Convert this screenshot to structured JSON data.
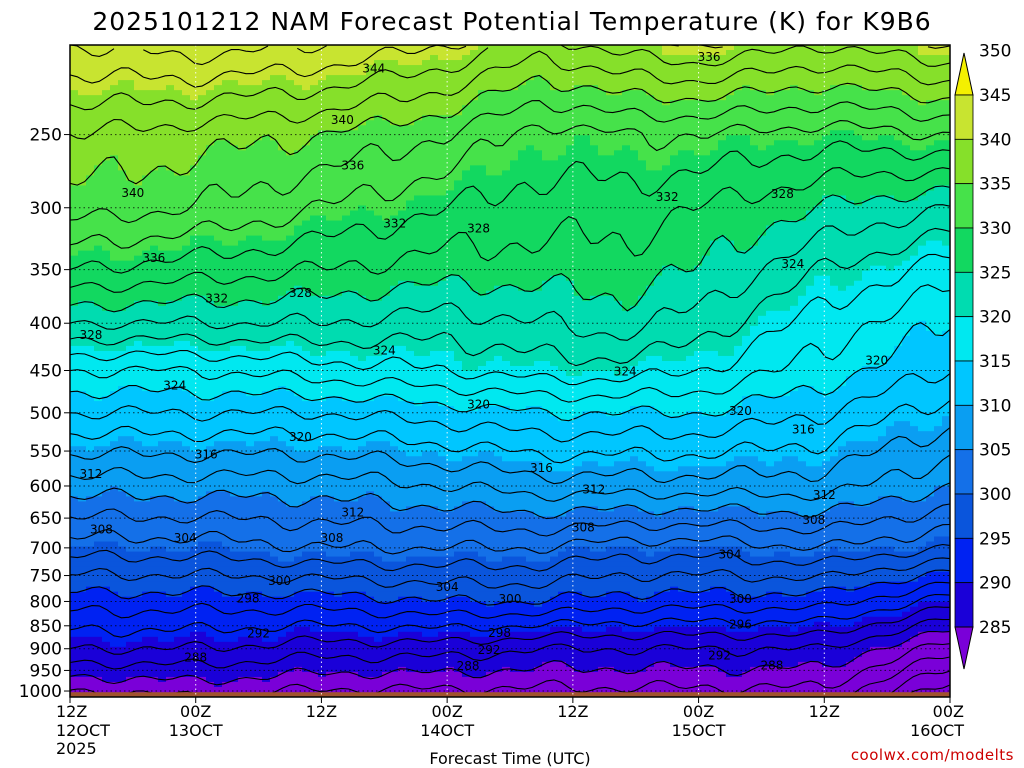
{
  "chart_data": {
    "type": "contour",
    "title": "2025101212 NAM Forecast Potential Temperature (K) for K9B6",
    "xlabel": "Forecast Time (UTC)",
    "ylabel": "",
    "y_axis": {
      "scale": "log-pressure",
      "range": [
        1015,
        200
      ],
      "ticks": [
        250,
        300,
        350,
        400,
        450,
        500,
        550,
        600,
        650,
        700,
        750,
        800,
        850,
        900,
        950,
        1000
      ]
    },
    "x_axis": {
      "range_hours": [
        0,
        84
      ],
      "ticks": [
        {
          "hour": 0,
          "line1": "12Z",
          "line2": "12OCT",
          "line3": "2025"
        },
        {
          "hour": 12,
          "line1": "00Z",
          "line2": "13OCT",
          "line3": ""
        },
        {
          "hour": 24,
          "line1": "12Z",
          "line2": "",
          "line3": ""
        },
        {
          "hour": 36,
          "line1": "00Z",
          "line2": "14OCT",
          "line3": ""
        },
        {
          "hour": 48,
          "line1": "12Z",
          "line2": "",
          "line3": ""
        },
        {
          "hour": 60,
          "line1": "00Z",
          "line2": "15OCT",
          "line3": ""
        },
        {
          "hour": 72,
          "line1": "12Z",
          "line2": "",
          "line3": ""
        },
        {
          "hour": 84,
          "line1": "00Z",
          "line2": "16OCT",
          "line3": ""
        }
      ]
    },
    "colorbar": {
      "levels": [
        285,
        290,
        295,
        300,
        305,
        310,
        315,
        320,
        325,
        330,
        335,
        340,
        345,
        350
      ],
      "colors": [
        "#7a00d8",
        "#1a00d8",
        "#0022f2",
        "#0a55dc",
        "#1470e8",
        "#0a9ef2",
        "#00c6ff",
        "#00e8f0",
        "#00dcb0",
        "#12d860",
        "#46e24a",
        "#86e02a",
        "#c8e430",
        "#f4f000"
      ]
    },
    "grid": true,
    "contour_interval": 2,
    "profiles": [
      {
        "hour": 0,
        "theta": [
          [
            1015,
            287
          ],
          [
            900,
            294
          ],
          [
            800,
            299
          ],
          [
            700,
            305
          ],
          [
            600,
            311
          ],
          [
            500,
            318
          ],
          [
            450,
            322
          ],
          [
            400,
            328
          ],
          [
            350,
            334
          ],
          [
            300,
            339
          ],
          [
            250,
            342
          ],
          [
            200,
            348
          ]
        ]
      },
      {
        "hour": 12,
        "theta": [
          [
            1015,
            288
          ],
          [
            900,
            294
          ],
          [
            800,
            299
          ],
          [
            700,
            305
          ],
          [
            600,
            311
          ],
          [
            500,
            318
          ],
          [
            450,
            322
          ],
          [
            400,
            328
          ],
          [
            350,
            333
          ],
          [
            300,
            338
          ],
          [
            250,
            341
          ],
          [
            200,
            349
          ]
        ]
      },
      {
        "hour": 24,
        "theta": [
          [
            1015,
            287
          ],
          [
            900,
            293
          ],
          [
            800,
            299
          ],
          [
            700,
            306
          ],
          [
            600,
            311
          ],
          [
            500,
            318
          ],
          [
            450,
            323
          ],
          [
            400,
            328
          ],
          [
            350,
            332
          ],
          [
            300,
            336
          ],
          [
            250,
            340
          ],
          [
            200,
            348
          ]
        ]
      },
      {
        "hour": 36,
        "theta": [
          [
            1015,
            287
          ],
          [
            900,
            293
          ],
          [
            800,
            300
          ],
          [
            700,
            306
          ],
          [
            600,
            312
          ],
          [
            500,
            319
          ],
          [
            450,
            324
          ],
          [
            400,
            327
          ],
          [
            350,
            331
          ],
          [
            300,
            334
          ],
          [
            250,
            338
          ],
          [
            200,
            346
          ]
        ]
      },
      {
        "hour": 45,
        "theta": [
          [
            1015,
            287
          ],
          [
            900,
            292
          ],
          [
            800,
            300
          ],
          [
            700,
            306
          ],
          [
            600,
            313
          ],
          [
            500,
            320
          ],
          [
            450,
            325
          ],
          [
            400,
            328
          ],
          [
            350,
            331
          ],
          [
            300,
            333
          ],
          [
            250,
            335
          ],
          [
            200,
            343
          ]
        ]
      },
      {
        "hour": 53,
        "theta": [
          [
            1015,
            287
          ],
          [
            900,
            292
          ],
          [
            800,
            299
          ],
          [
            700,
            305
          ],
          [
            600,
            313
          ],
          [
            500,
            320
          ],
          [
            450,
            325
          ],
          [
            400,
            329
          ],
          [
            350,
            331
          ],
          [
            300,
            333
          ],
          [
            250,
            336
          ],
          [
            200,
            345
          ]
        ]
      },
      {
        "hour": 60,
        "theta": [
          [
            1015,
            287
          ],
          [
            900,
            292
          ],
          [
            800,
            299
          ],
          [
            700,
            305
          ],
          [
            600,
            313
          ],
          [
            500,
            320
          ],
          [
            450,
            324
          ],
          [
            400,
            327
          ],
          [
            350,
            330
          ],
          [
            300,
            332
          ],
          [
            250,
            336
          ],
          [
            200,
            346
          ]
        ]
      },
      {
        "hour": 72,
        "theta": [
          [
            1015,
            287
          ],
          [
            900,
            292
          ],
          [
            800,
            299
          ],
          [
            700,
            306
          ],
          [
            600,
            313
          ],
          [
            500,
            318
          ],
          [
            450,
            321
          ],
          [
            400,
            323
          ],
          [
            350,
            326
          ],
          [
            300,
            330
          ],
          [
            250,
            335
          ],
          [
            200,
            344
          ]
        ]
      },
      {
        "hour": 84,
        "theta": [
          [
            1015,
            280
          ],
          [
            900,
            287
          ],
          [
            800,
            295
          ],
          [
            700,
            304
          ],
          [
            600,
            310
          ],
          [
            500,
            315
          ],
          [
            450,
            318
          ],
          [
            400,
            320
          ],
          [
            350,
            323
          ],
          [
            300,
            328
          ],
          [
            250,
            336
          ],
          [
            200,
            346
          ]
        ]
      }
    ],
    "contour_labels": [
      {
        "text": "344",
        "hour": 29,
        "p": 212
      },
      {
        "text": "336",
        "hour": 61,
        "p": 206
      },
      {
        "text": "340",
        "hour": 26,
        "p": 241
      },
      {
        "text": "336",
        "hour": 27,
        "p": 270
      },
      {
        "text": "340",
        "hour": 6,
        "p": 289
      },
      {
        "text": "332",
        "hour": 31,
        "p": 312
      },
      {
        "text": "328",
        "hour": 39,
        "p": 316
      },
      {
        "text": "332",
        "hour": 57,
        "p": 292
      },
      {
        "text": "328",
        "hour": 68,
        "p": 290
      },
      {
        "text": "336",
        "hour": 8,
        "p": 340
      },
      {
        "text": "324",
        "hour": 69,
        "p": 345
      },
      {
        "text": "332",
        "hour": 14,
        "p": 376
      },
      {
        "text": "328",
        "hour": 22,
        "p": 371
      },
      {
        "text": "328",
        "hour": 2,
        "p": 412
      },
      {
        "text": "324",
        "hour": 30,
        "p": 428
      },
      {
        "text": "324",
        "hour": 53,
        "p": 451
      },
      {
        "text": "320",
        "hour": 77,
        "p": 439
      },
      {
        "text": "324",
        "hour": 10,
        "p": 467
      },
      {
        "text": "320",
        "hour": 39,
        "p": 490
      },
      {
        "text": "320",
        "hour": 64,
        "p": 498
      },
      {
        "text": "316",
        "hour": 70,
        "p": 521
      },
      {
        "text": "320",
        "hour": 22,
        "p": 531
      },
      {
        "text": "316",
        "hour": 13,
        "p": 555
      },
      {
        "text": "316",
        "hour": 45,
        "p": 574
      },
      {
        "text": "312",
        "hour": 2,
        "p": 582
      },
      {
        "text": "312",
        "hour": 50,
        "p": 605
      },
      {
        "text": "312",
        "hour": 72,
        "p": 614
      },
      {
        "text": "312",
        "hour": 27,
        "p": 641
      },
      {
        "text": "308",
        "hour": 3,
        "p": 669
      },
      {
        "text": "304",
        "hour": 11,
        "p": 683
      },
      {
        "text": "308",
        "hour": 25,
        "p": 683
      },
      {
        "text": "308",
        "hour": 49,
        "p": 665
      },
      {
        "text": "308",
        "hour": 71,
        "p": 653
      },
      {
        "text": "304",
        "hour": 63,
        "p": 712
      },
      {
        "text": "300",
        "hour": 20,
        "p": 760
      },
      {
        "text": "304",
        "hour": 36,
        "p": 772
      },
      {
        "text": "298",
        "hour": 17,
        "p": 794
      },
      {
        "text": "300",
        "hour": 42,
        "p": 795
      },
      {
        "text": "300",
        "hour": 64,
        "p": 795
      },
      {
        "text": "298",
        "hour": 41,
        "p": 865
      },
      {
        "text": "296",
        "hour": 64,
        "p": 847
      },
      {
        "text": "292",
        "hour": 18,
        "p": 866
      },
      {
        "text": "292",
        "hour": 40,
        "p": 903
      },
      {
        "text": "292",
        "hour": 62,
        "p": 915
      },
      {
        "text": "288",
        "hour": 12,
        "p": 920
      },
      {
        "text": "288",
        "hour": 38,
        "p": 940
      },
      {
        "text": "288",
        "hour": 67,
        "p": 938
      }
    ],
    "ground_color": "#a0522d"
  },
  "credit": "coolwx.com/modelts"
}
